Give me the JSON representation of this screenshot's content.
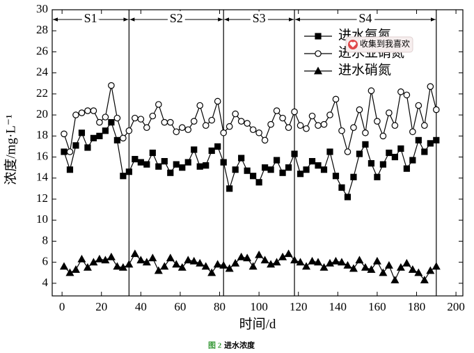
{
  "chart_data": {
    "type": "line",
    "x_label": "时间/d",
    "y_label": "浓度/mg·L⁻¹",
    "x": [
      1,
      4,
      7,
      10,
      13,
      16,
      19,
      22,
      25,
      28,
      31,
      34,
      37,
      40,
      43,
      46,
      49,
      52,
      55,
      58,
      61,
      64,
      67,
      70,
      73,
      76,
      79,
      82,
      85,
      88,
      91,
      94,
      97,
      100,
      103,
      106,
      109,
      112,
      115,
      118,
      121,
      124,
      127,
      130,
      133,
      136,
      139,
      142,
      145,
      148,
      151,
      154,
      157,
      160,
      163,
      166,
      169,
      172,
      175,
      178,
      181,
      184,
      187,
      190
    ],
    "series": [
      {
        "name": "进水氨氮",
        "color": "#000000",
        "marker": "square",
        "values": [
          16.5,
          14.8,
          17.1,
          18.3,
          16.9,
          17.8,
          18.0,
          18.5,
          19.3,
          17.6,
          14.2,
          14.6,
          15.8,
          15.5,
          15.3,
          16.4,
          15.1,
          15.6,
          14.5,
          15.3,
          15.0,
          15.5,
          16.7,
          15.1,
          15.2,
          16.6,
          17.0,
          15.5,
          13.0,
          14.8,
          15.9,
          14.7,
          14.2,
          13.6,
          15.0,
          14.8,
          15.7,
          14.5,
          15.0,
          16.3,
          14.4,
          14.8,
          15.6,
          15.2,
          14.8,
          16.5,
          14.2,
          13.1,
          12.2,
          14.1,
          16.3,
          17.2,
          15.4,
          14.1,
          15.3,
          16.4,
          16.0,
          16.8,
          14.9,
          15.7,
          17.6,
          16.5,
          17.3,
          17.6
        ]
      },
      {
        "name": "进水亚硝氮",
        "color": "#000000",
        "marker": "circle",
        "values": [
          18.2,
          16.5,
          20.0,
          20.2,
          20.4,
          20.4,
          19.3,
          19.8,
          22.8,
          19.7,
          17.8,
          18.5,
          19.7,
          19.6,
          18.8,
          19.9,
          21.0,
          19.3,
          19.3,
          18.4,
          18.8,
          18.6,
          19.4,
          20.9,
          19.0,
          19.5,
          21.3,
          18.3,
          18.9,
          20.1,
          19.4,
          19.2,
          18.6,
          18.3,
          17.6,
          19.1,
          20.4,
          19.7,
          18.8,
          20.3,
          19.0,
          18.7,
          19.9,
          19.0,
          19.1,
          20.0,
          21.5,
          18.5,
          16.5,
          18.8,
          20.5,
          18.3,
          22.3,
          19.4,
          18.0,
          20.2,
          19.0,
          22.2,
          21.9,
          18.4,
          20.9,
          19.0,
          22.7,
          20.5
        ]
      },
      {
        "name": "进水硝氮",
        "color": "#000000",
        "marker": "triangle",
        "values": [
          5.6,
          5.0,
          5.3,
          6.3,
          5.5,
          6.0,
          6.3,
          6.2,
          6.5,
          5.6,
          5.5,
          5.8,
          6.8,
          6.2,
          6.0,
          6.4,
          5.2,
          5.6,
          6.4,
          5.8,
          5.5,
          6.2,
          6.1,
          5.9,
          5.6,
          5.0,
          5.8,
          5.7,
          5.4,
          5.9,
          6.5,
          6.4,
          5.6,
          6.7,
          6.2,
          5.8,
          6.0,
          6.5,
          6.8,
          6.2,
          6.0,
          5.6,
          6.1,
          6.0,
          5.5,
          5.9,
          6.1,
          6.0,
          5.7,
          5.4,
          6.2,
          5.5,
          5.3,
          6.1,
          5.0,
          5.7,
          4.3,
          5.5,
          5.9,
          5.3,
          5.0,
          4.3,
          5.2,
          5.6
        ]
      }
    ],
    "phases": {
      "labels": [
        "S1",
        "S2",
        "S3",
        "S4"
      ],
      "boundaries": [
        34,
        82,
        118,
        190
      ]
    },
    "xlim": [
      -5,
      203.5
    ],
    "ylim": [
      2.8,
      30
    ],
    "xticks": [
      0,
      20,
      40,
      60,
      80,
      100,
      120,
      140,
      160,
      180,
      200
    ],
    "yticks": [
      4,
      6,
      8,
      10,
      12,
      14,
      16,
      18,
      20,
      22,
      24,
      26,
      28,
      30
    ],
    "grid": false,
    "legend": "upper right"
  },
  "overlay_button": "收集到我喜欢",
  "caption": {
    "figure": "图 2",
    "text": "进水浓度"
  }
}
